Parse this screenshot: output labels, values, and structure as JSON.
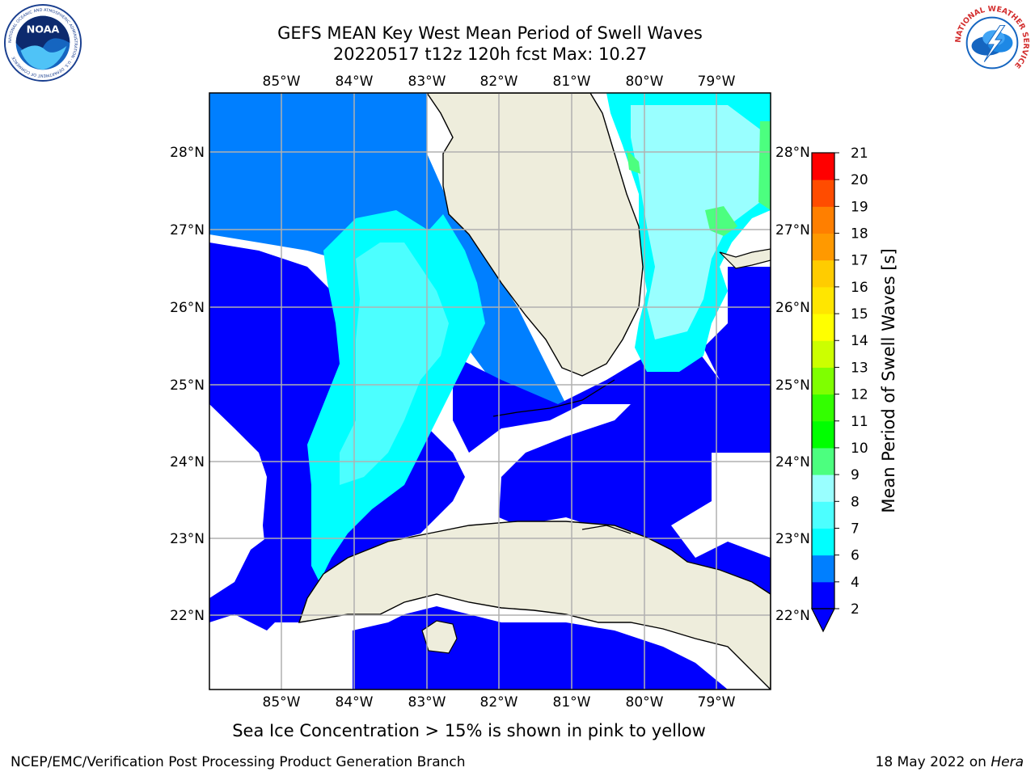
{
  "header": {
    "title_line1": "GEFS MEAN Key West Mean Period of Swell Waves",
    "title_line2": "20220517 t12z 120h fcst   Max: 10.27"
  },
  "logos": {
    "left": "noaa-logo",
    "left_text": "NOAA",
    "left_ring_text": "NATIONAL OCEANIC AND ATMOSPHERIC ADMINISTRATION · U.S. DEPARTMENT OF COMMERCE",
    "right": "national-weather-service-logo",
    "right_ring_text": "NATIONAL WEATHER SERVICE"
  },
  "map": {
    "lon_labels": [
      "85°W",
      "84°W",
      "83°W",
      "82°W",
      "81°W",
      "80°W",
      "79°W"
    ],
    "lat_labels": [
      "28°N",
      "27°N",
      "26°N",
      "25°N",
      "24°N",
      "23°N",
      "22°N"
    ],
    "colors": {
      "land": "#eeeddc",
      "band_2_4": "#0000ff",
      "band_4_6": "#007fff",
      "band_6_7": "#00ffff",
      "band_7_8": "#4cffff",
      "band_8_9": "#99ffff",
      "band_9_10": "#4cff7f",
      "grid": "#b0b0b0"
    }
  },
  "colorbar": {
    "label": "Mean Period of Swell Waves [s]",
    "ticks": [
      "2",
      "4",
      "6",
      "7",
      "8",
      "9",
      "10",
      "11",
      "12",
      "13",
      "14",
      "15",
      "16",
      "17",
      "18",
      "19",
      "20",
      "21"
    ],
    "colors": [
      "#0000ff",
      "#007fff",
      "#00ffff",
      "#4cffff",
      "#99ffff",
      "#4cff7f",
      "#00ff00",
      "#33ff00",
      "#7fff00",
      "#ccff00",
      "#ffff00",
      "#ffe600",
      "#ffcc00",
      "#ff9900",
      "#ff7f00",
      "#ff4c00",
      "#ff0000"
    ]
  },
  "footer": {
    "note": "Sea Ice Concentration > 15% is shown in pink to yellow",
    "credit": "NCEP/EMC/Verification Post Processing Product Generation Branch",
    "date": "18 May 2022 on",
    "host": "Hera"
  }
}
